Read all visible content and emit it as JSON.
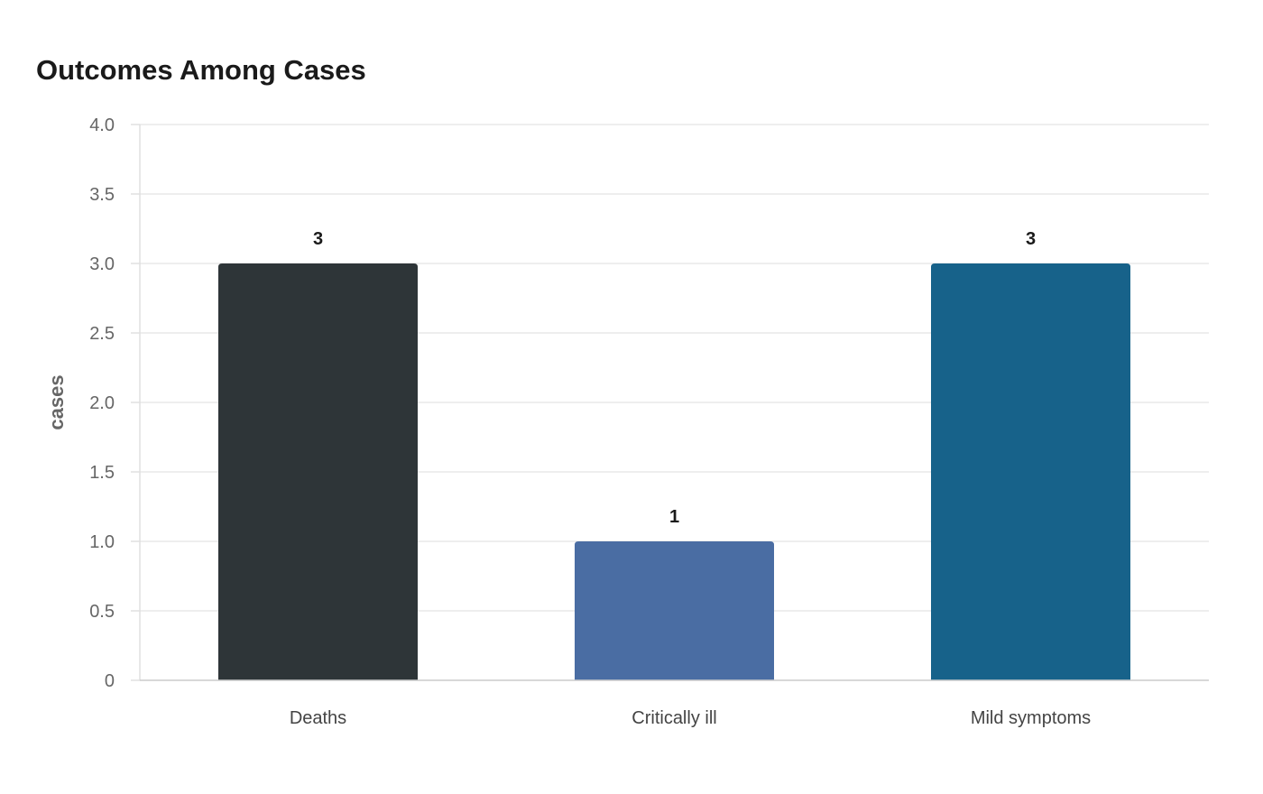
{
  "chart_data": {
    "type": "bar",
    "title": "Outcomes Among Cases",
    "xlabel": "",
    "ylabel": "cases",
    "categories": [
      "Deaths",
      "Critically ill",
      "Mild symptoms"
    ],
    "values": [
      3,
      1,
      3
    ],
    "data_labels": [
      "3",
      "1",
      "3"
    ],
    "colors": [
      "#2e3538",
      "#4a6da3",
      "#17628a"
    ],
    "ylim": [
      0,
      4
    ],
    "y_ticks": [
      0,
      0.5,
      1,
      1.5,
      2,
      2.5,
      3,
      3.5,
      4
    ],
    "y_tick_labels": [
      "0",
      "0.5",
      "1.0",
      "1.5",
      "2.0",
      "2.5",
      "3.0",
      "3.5",
      "4.0"
    ],
    "grid": true,
    "legend": "none"
  }
}
